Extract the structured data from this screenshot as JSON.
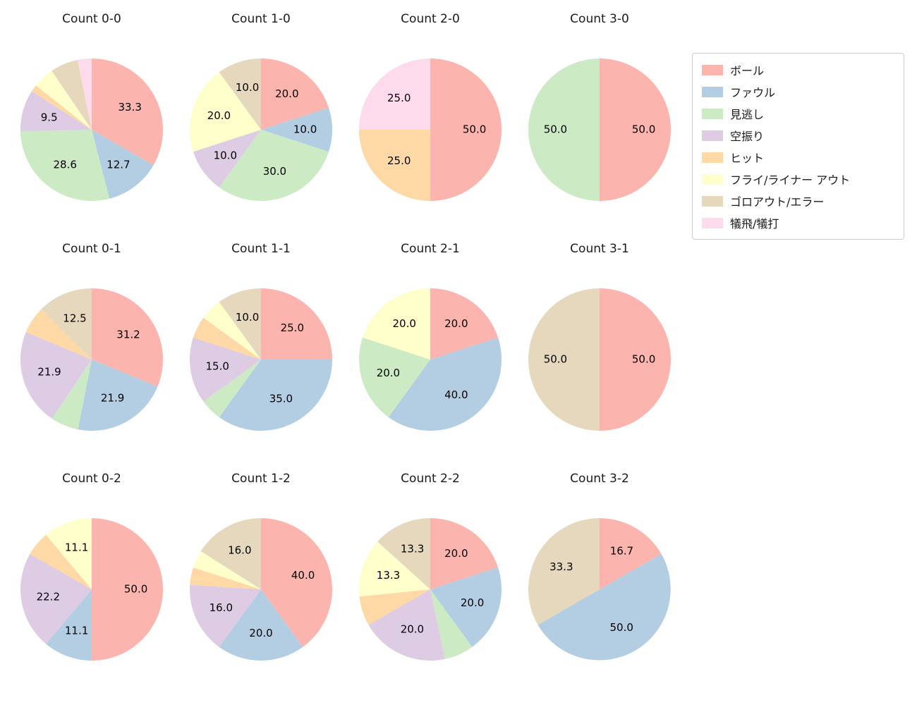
{
  "figure": {
    "background": "#ffffff"
  },
  "pie_style": {
    "start_angle": "top",
    "direction": "clockwise",
    "label_radius": 0.62,
    "label_min_value": 9.0,
    "label_decimals": 1
  },
  "legend": {
    "entries": [
      {
        "label": "ボール",
        "color": "#fbb4ae"
      },
      {
        "label": "ファウル",
        "color": "#b3cde3"
      },
      {
        "label": "見逃し",
        "color": "#ccebc5"
      },
      {
        "label": "空振り",
        "color": "#decbe4"
      },
      {
        "label": "ヒット",
        "color": "#fed9a6"
      },
      {
        "label": "フライ/ライナー アウト",
        "color": "#ffffcc"
      },
      {
        "label": "ゴロアウト/エラー",
        "color": "#e5d8bd"
      },
      {
        "label": "犠飛/犠打",
        "color": "#fddaec"
      }
    ]
  },
  "chart_data": [
    {
      "type": "pie",
      "title": "Count 0-0",
      "slices": [
        {
          "category": "ボール",
          "value": 33.3
        },
        {
          "category": "ファウル",
          "value": 12.7
        },
        {
          "category": "見逃し",
          "value": 28.6
        },
        {
          "category": "空振り",
          "value": 9.5
        },
        {
          "category": "ヒット",
          "value": 1.6
        },
        {
          "category": "フライ/ライナー アウト",
          "value": 4.8
        },
        {
          "category": "ゴロアウト/エラー",
          "value": 6.3
        },
        {
          "category": "犠飛/犠打",
          "value": 3.2
        }
      ]
    },
    {
      "type": "pie",
      "title": "Count 1-0",
      "slices": [
        {
          "category": "ボール",
          "value": 20.0
        },
        {
          "category": "ファウル",
          "value": 10.0
        },
        {
          "category": "見逃し",
          "value": 30.0
        },
        {
          "category": "空振り",
          "value": 10.0
        },
        {
          "category": "フライ/ライナー アウト",
          "value": 20.0
        },
        {
          "category": "ゴロアウト/エラー",
          "value": 10.0
        }
      ]
    },
    {
      "type": "pie",
      "title": "Count 2-0",
      "slices": [
        {
          "category": "ボール",
          "value": 50.0
        },
        {
          "category": "ヒット",
          "value": 25.0
        },
        {
          "category": "犠飛/犠打",
          "value": 25.0
        }
      ]
    },
    {
      "type": "pie",
      "title": "Count 3-0",
      "slices": [
        {
          "category": "ボール",
          "value": 50.0
        },
        {
          "category": "見逃し",
          "value": 50.0
        }
      ]
    },
    {
      "type": "pie",
      "title": "Count 0-1",
      "slices": [
        {
          "category": "ボール",
          "value": 31.2
        },
        {
          "category": "ファウル",
          "value": 21.9
        },
        {
          "category": "見逃し",
          "value": 6.3
        },
        {
          "category": "空振り",
          "value": 21.9
        },
        {
          "category": "ヒット",
          "value": 6.2
        },
        {
          "category": "ゴロアウト/エラー",
          "value": 12.5
        }
      ]
    },
    {
      "type": "pie",
      "title": "Count 1-1",
      "slices": [
        {
          "category": "ボール",
          "value": 25.0
        },
        {
          "category": "ファウル",
          "value": 35.0
        },
        {
          "category": "見逃し",
          "value": 5.0
        },
        {
          "category": "空振り",
          "value": 15.0
        },
        {
          "category": "ヒット",
          "value": 5.0
        },
        {
          "category": "フライ/ライナー アウト",
          "value": 5.0
        },
        {
          "category": "ゴロアウト/エラー",
          "value": 10.0
        }
      ]
    },
    {
      "type": "pie",
      "title": "Count 2-1",
      "slices": [
        {
          "category": "ボール",
          "value": 20.0
        },
        {
          "category": "ファウル",
          "value": 40.0
        },
        {
          "category": "見逃し",
          "value": 20.0
        },
        {
          "category": "フライ/ライナー アウト",
          "value": 20.0
        }
      ]
    },
    {
      "type": "pie",
      "title": "Count 3-1",
      "slices": [
        {
          "category": "ボール",
          "value": 50.0
        },
        {
          "category": "ゴロアウト/エラー",
          "value": 50.0
        }
      ]
    },
    {
      "type": "pie",
      "title": "Count 0-2",
      "slices": [
        {
          "category": "ボール",
          "value": 50.0
        },
        {
          "category": "ファウル",
          "value": 11.1
        },
        {
          "category": "空振り",
          "value": 22.2
        },
        {
          "category": "ヒット",
          "value": 5.6
        },
        {
          "category": "フライ/ライナー アウト",
          "value": 11.1
        }
      ]
    },
    {
      "type": "pie",
      "title": "Count 1-2",
      "slices": [
        {
          "category": "ボール",
          "value": 40.0
        },
        {
          "category": "ファウル",
          "value": 20.0
        },
        {
          "category": "空振り",
          "value": 16.0
        },
        {
          "category": "ヒット",
          "value": 4.0
        },
        {
          "category": "フライ/ライナー アウト",
          "value": 4.0
        },
        {
          "category": "ゴロアウト/エラー",
          "value": 16.0
        }
      ]
    },
    {
      "type": "pie",
      "title": "Count 2-2",
      "slices": [
        {
          "category": "ボール",
          "value": 20.0
        },
        {
          "category": "ファウル",
          "value": 20.0
        },
        {
          "category": "見逃し",
          "value": 6.7
        },
        {
          "category": "空振り",
          "value": 20.0
        },
        {
          "category": "ヒット",
          "value": 6.7
        },
        {
          "category": "フライ/ライナー アウト",
          "value": 13.3
        },
        {
          "category": "ゴロアウト/エラー",
          "value": 13.3
        }
      ]
    },
    {
      "type": "pie",
      "title": "Count 3-2",
      "slices": [
        {
          "category": "ボール",
          "value": 16.7
        },
        {
          "category": "ファウル",
          "value": 50.0
        },
        {
          "category": "ゴロアウト/エラー",
          "value": 33.3
        }
      ]
    }
  ]
}
